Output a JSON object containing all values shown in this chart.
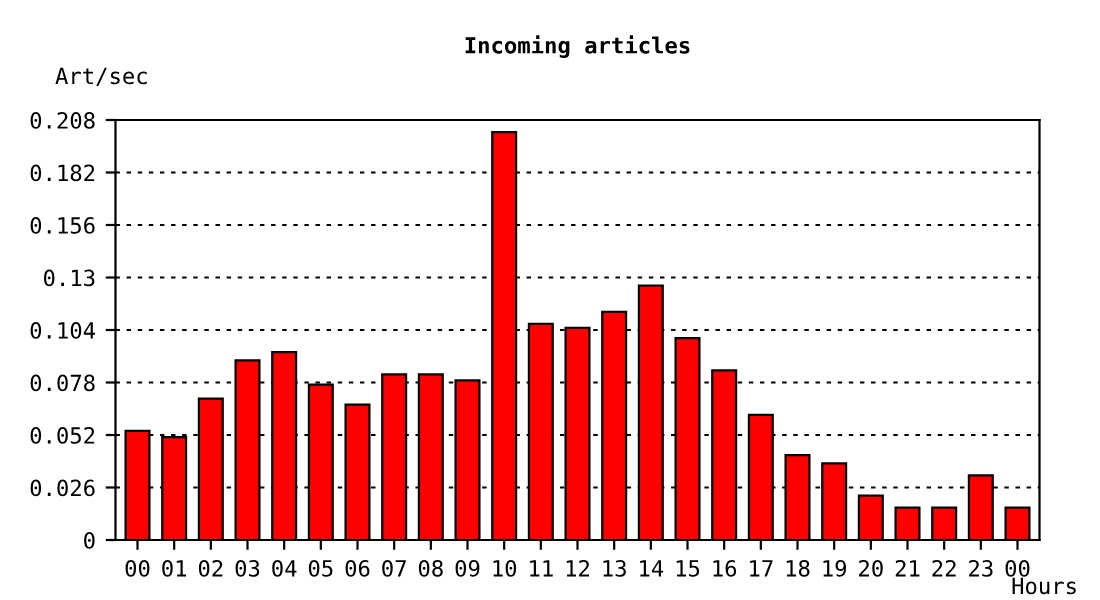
{
  "chart_data": {
    "type": "bar",
    "title": "Incoming articles",
    "ylabel": "Art/sec",
    "xlabel": "Hours",
    "categories": [
      "00",
      "01",
      "02",
      "03",
      "04",
      "05",
      "06",
      "07",
      "08",
      "09",
      "10",
      "11",
      "12",
      "13",
      "14",
      "15",
      "16",
      "17",
      "18",
      "19",
      "20",
      "21",
      "22",
      "23",
      "00"
    ],
    "values": [
      0.054,
      0.051,
      0.07,
      0.089,
      0.093,
      0.077,
      0.067,
      0.082,
      0.082,
      0.079,
      0.202,
      0.107,
      0.105,
      0.113,
      0.126,
      0.1,
      0.084,
      0.062,
      0.042,
      0.038,
      0.022,
      0.016,
      0.016,
      0.032,
      0.016
    ],
    "color": "#ff0000",
    "ylim": [
      0,
      0.208
    ],
    "yticks": [
      0,
      0.026,
      0.052,
      0.078,
      0.104,
      0.13,
      0.156,
      0.182,
      0.208
    ],
    "grid": "y"
  }
}
